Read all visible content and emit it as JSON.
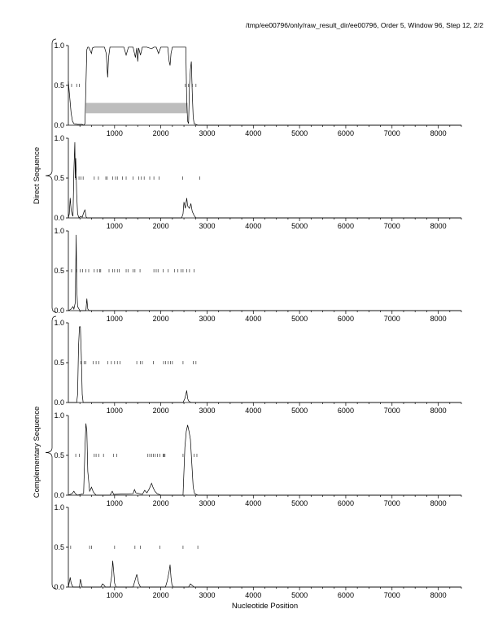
{
  "header": "/tmp/ee00796/only/raw_result_dir/ee00796, Order 5, Window 96, Step 12, 2/2",
  "xlabel": "Nucleotide Position",
  "groups": [
    "Direct Sequence",
    "Complementary Sequence"
  ],
  "chart_data": {
    "type": "line",
    "xlim": [
      0,
      8500
    ],
    "ylim": [
      0,
      1.0
    ],
    "xticks": [
      1000,
      2000,
      3000,
      4000,
      5000,
      6000,
      7000,
      8000
    ],
    "yticks": [
      0.0,
      0.5,
      1.0
    ],
    "ytick_labels": [
      "0.0",
      "0.5",
      "1.0"
    ],
    "grid": false,
    "panels": [
      {
        "group": "Direct Sequence",
        "frame": 1,
        "line": [
          [
            0,
            0.55
          ],
          [
            30,
            0.35
          ],
          [
            60,
            0.15
          ],
          [
            90,
            0.05
          ],
          [
            120,
            0.02
          ],
          [
            200,
            0.01
          ],
          [
            300,
            0.01
          ],
          [
            330,
            0.0
          ],
          [
            360,
            0.02
          ],
          [
            380,
            0.5
          ],
          [
            400,
            0.95
          ],
          [
            420,
            0.98
          ],
          [
            440,
            0.98
          ],
          [
            500,
            0.9
          ],
          [
            520,
            0.97
          ],
          [
            560,
            0.98
          ],
          [
            600,
            0.98
          ],
          [
            700,
            0.98
          ],
          [
            780,
            0.98
          ],
          [
            820,
            0.9
          ],
          [
            850,
            0.6
          ],
          [
            870,
            0.85
          ],
          [
            900,
            0.98
          ],
          [
            1000,
            0.98
          ],
          [
            1100,
            0.98
          ],
          [
            1200,
            0.98
          ],
          [
            1250,
            0.88
          ],
          [
            1300,
            0.98
          ],
          [
            1400,
            0.98
          ],
          [
            1450,
            0.85
          ],
          [
            1480,
            0.97
          ],
          [
            1500,
            0.8
          ],
          [
            1520,
            0.97
          ],
          [
            1560,
            0.88
          ],
          [
            1600,
            0.98
          ],
          [
            1700,
            0.98
          ],
          [
            1800,
            0.96
          ],
          [
            1850,
            0.98
          ],
          [
            1900,
            0.98
          ],
          [
            1950,
            0.9
          ],
          [
            2000,
            0.98
          ],
          [
            2100,
            0.98
          ],
          [
            2150,
            0.98
          ],
          [
            2180,
            0.8
          ],
          [
            2200,
            0.75
          ],
          [
            2220,
            0.9
          ],
          [
            2250,
            0.98
          ],
          [
            2400,
            0.98
          ],
          [
            2500,
            0.98
          ],
          [
            2540,
            0.98
          ],
          [
            2560,
            0.3
          ],
          [
            2580,
            0.05
          ],
          [
            2600,
            0.02
          ],
          [
            2620,
            0.5
          ],
          [
            2640,
            0.7
          ],
          [
            2660,
            0.8
          ],
          [
            2680,
            0.4
          ],
          [
            2700,
            0.1
          ],
          [
            2720,
            0.02
          ],
          [
            2800,
            0.0
          ],
          [
            3000,
            0.0
          ],
          [
            8500,
            0.0
          ]
        ],
        "ticks_y": 0.5,
        "ticks_x": [
          70,
          180,
          240,
          2530,
          2600,
          2680,
          2760
        ],
        "shaded_region": {
          "x": [
            380,
            2580
          ],
          "y": [
            0.15,
            0.28
          ]
        }
      },
      {
        "group": "Direct Sequence",
        "frame": 2,
        "line": [
          [
            0,
            0.0
          ],
          [
            20,
            0.05
          ],
          [
            40,
            0.25
          ],
          [
            60,
            0.1
          ],
          [
            80,
            0.05
          ],
          [
            100,
            0.02
          ],
          [
            120,
            0.6
          ],
          [
            140,
            0.95
          ],
          [
            150,
            0.5
          ],
          [
            160,
            0.75
          ],
          [
            180,
            0.3
          ],
          [
            200,
            0.05
          ],
          [
            230,
            0.0
          ],
          [
            260,
            0.02
          ],
          [
            300,
            0.01
          ],
          [
            340,
            0.08
          ],
          [
            360,
            0.1
          ],
          [
            380,
            0.02
          ],
          [
            400,
            0.0
          ],
          [
            2450,
            0.0
          ],
          [
            2480,
            0.05
          ],
          [
            2500,
            0.2
          ],
          [
            2530,
            0.12
          ],
          [
            2560,
            0.25
          ],
          [
            2580,
            0.15
          ],
          [
            2620,
            0.12
          ],
          [
            2650,
            0.18
          ],
          [
            2680,
            0.08
          ],
          [
            2720,
            0.03
          ],
          [
            2760,
            0.0
          ],
          [
            8500,
            0.0
          ]
        ],
        "ticks_y": 0.5,
        "ticks_x": [
          160,
          230,
          270,
          320,
          560,
          650,
          810,
          840,
          960,
          1020,
          1060,
          1170,
          1250,
          1400,
          1520,
          1580,
          1640,
          1760,
          1850,
          1960,
          2470,
          2840
        ]
      },
      {
        "group": "Direct Sequence",
        "frame": 3,
        "line": [
          [
            0,
            0.0
          ],
          [
            60,
            0.02
          ],
          [
            100,
            0.05
          ],
          [
            120,
            0.02
          ],
          [
            150,
            0.1
          ],
          [
            170,
            0.95
          ],
          [
            180,
            0.3
          ],
          [
            200,
            0.05
          ],
          [
            250,
            0.0
          ],
          [
            380,
            0.0
          ],
          [
            400,
            0.15
          ],
          [
            420,
            0.02
          ],
          [
            450,
            0.0
          ],
          [
            8500,
            0.0
          ]
        ],
        "ticks_y": 0.5,
        "ticks_x": [
          70,
          180,
          260,
          310,
          380,
          440,
          560,
          620,
          680,
          700,
          880,
          960,
          1000,
          1060,
          1100,
          1250,
          1290,
          1400,
          1440,
          1550,
          1850,
          1900,
          1940,
          2050,
          2160,
          2300,
          2370,
          2440,
          2480,
          2560,
          2620,
          2720
        ]
      },
      {
        "group": "Complementary Sequence",
        "frame": 1,
        "line": [
          [
            0,
            0.0
          ],
          [
            180,
            0.0
          ],
          [
            200,
            0.1
          ],
          [
            220,
            0.7
          ],
          [
            240,
            0.95
          ],
          [
            260,
            0.95
          ],
          [
            280,
            0.6
          ],
          [
            300,
            0.1
          ],
          [
            320,
            0.0
          ],
          [
            2480,
            0.0
          ],
          [
            2520,
            0.05
          ],
          [
            2560,
            0.15
          ],
          [
            2580,
            0.05
          ],
          [
            2600,
            0.02
          ],
          [
            2650,
            0.0
          ],
          [
            8500,
            0.0
          ]
        ],
        "ticks_y": 0.5,
        "ticks_x": [
          270,
          340,
          380,
          540,
          600,
          660,
          850,
          930,
          1000,
          1060,
          1120,
          1480,
          1560,
          1600,
          1840,
          2060,
          2100,
          2160,
          2210,
          2250,
          2480,
          2700,
          2760
        ]
      },
      {
        "group": "Complementary Sequence",
        "frame": 2,
        "line": [
          [
            0,
            0.0
          ],
          [
            80,
            0.02
          ],
          [
            120,
            0.05
          ],
          [
            150,
            0.02
          ],
          [
            200,
            0.0
          ],
          [
            330,
            0.02
          ],
          [
            360,
            0.6
          ],
          [
            380,
            0.9
          ],
          [
            400,
            0.8
          ],
          [
            420,
            0.3
          ],
          [
            460,
            0.05
          ],
          [
            500,
            0.1
          ],
          [
            540,
            0.04
          ],
          [
            600,
            0.0
          ],
          [
            900,
            0.0
          ],
          [
            950,
            0.05
          ],
          [
            980,
            0.01
          ],
          [
            1400,
            0.02
          ],
          [
            1430,
            0.07
          ],
          [
            1460,
            0.03
          ],
          [
            1600,
            0.01
          ],
          [
            1650,
            0.06
          ],
          [
            1700,
            0.03
          ],
          [
            1750,
            0.08
          ],
          [
            1800,
            0.15
          ],
          [
            1830,
            0.1
          ],
          [
            1870,
            0.05
          ],
          [
            1920,
            0.02
          ],
          [
            2000,
            0.0
          ],
          [
            2480,
            0.0
          ],
          [
            2500,
            0.3
          ],
          [
            2520,
            0.6
          ],
          [
            2550,
            0.8
          ],
          [
            2580,
            0.88
          ],
          [
            2610,
            0.8
          ],
          [
            2640,
            0.7
          ],
          [
            2670,
            0.4
          ],
          [
            2700,
            0.1
          ],
          [
            2730,
            0.02
          ],
          [
            2800,
            0.0
          ],
          [
            8500,
            0.0
          ]
        ],
        "ticks_y": 0.5,
        "ticks_x": [
          160,
          240,
          560,
          600,
          660,
          760,
          980,
          1050,
          1720,
          1760,
          1800,
          1840,
          1880,
          1930,
          1980,
          2050,
          2070,
          2090,
          2480,
          2720,
          2780
        ]
      },
      {
        "group": "Complementary Sequence",
        "frame": 3,
        "line": [
          [
            0,
            0.0
          ],
          [
            40,
            0.12
          ],
          [
            60,
            0.05
          ],
          [
            100,
            0.0
          ],
          [
            240,
            0.0
          ],
          [
            260,
            0.1
          ],
          [
            280,
            0.05
          ],
          [
            300,
            0.0
          ],
          [
            700,
            0.0
          ],
          [
            740,
            0.04
          ],
          [
            780,
            0.02
          ],
          [
            800,
            0.0
          ],
          [
            900,
            0.0
          ],
          [
            940,
            0.15
          ],
          [
            960,
            0.33
          ],
          [
            980,
            0.2
          ],
          [
            1000,
            0.05
          ],
          [
            1030,
            0.0
          ],
          [
            1400,
            0.0
          ],
          [
            1450,
            0.1
          ],
          [
            1480,
            0.16
          ],
          [
            1520,
            0.05
          ],
          [
            1560,
            0.0
          ],
          [
            2100,
            0.0
          ],
          [
            2140,
            0.08
          ],
          [
            2180,
            0.2
          ],
          [
            2200,
            0.28
          ],
          [
            2220,
            0.12
          ],
          [
            2240,
            0.03
          ],
          [
            2270,
            0.0
          ],
          [
            2600,
            0.0
          ],
          [
            2640,
            0.04
          ],
          [
            2680,
            0.02
          ],
          [
            2720,
            0.0
          ],
          [
            8500,
            0.0
          ]
        ],
        "ticks_y": 0.5,
        "ticks_x": [
          50,
          460,
          500,
          1000,
          1440,
          1560,
          1980,
          2480,
          2800
        ]
      }
    ]
  }
}
